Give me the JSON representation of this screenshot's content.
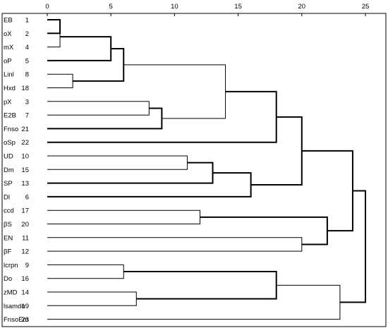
{
  "chart_data": {
    "type": "dendrogram",
    "title": "",
    "xlabel": "",
    "ylabel": "",
    "xlim": [
      0,
      25
    ],
    "x_ticks": [
      0,
      5,
      10,
      15,
      20,
      25
    ],
    "grid": false,
    "leaves": [
      {
        "label": "EB",
        "case": 1
      },
      {
        "label": "oX",
        "case": 2
      },
      {
        "label": "mX",
        "case": 4
      },
      {
        "label": "oP",
        "case": 5
      },
      {
        "label": "Linl",
        "case": 8
      },
      {
        "label": "Hxd",
        "case": 18
      },
      {
        "label": "pX",
        "case": 3
      },
      {
        "label": "E2B",
        "case": 7
      },
      {
        "label": "Fnso",
        "case": 21
      },
      {
        "label": "oSp",
        "case": 22
      },
      {
        "label": "UD",
        "case": 10
      },
      {
        "label": "Dm",
        "case": 15
      },
      {
        "label": "SP",
        "case": 13
      },
      {
        "label": "Dl",
        "case": 6
      },
      {
        "label": "ccd",
        "case": 17
      },
      {
        "label": "βS",
        "case": 20
      },
      {
        "label": "EN",
        "case": 11
      },
      {
        "label": "βF",
        "case": 12
      },
      {
        "label": "lcrpn",
        "case": 9
      },
      {
        "label": "Do",
        "case": 16
      },
      {
        "label": "zMD",
        "case": 14
      },
      {
        "label": "lsamdn",
        "case": 19
      },
      {
        "label": "FnsoEm",
        "case": 23
      }
    ],
    "merges": [
      {
        "a": "L0",
        "b": "L1",
        "height": 1.0,
        "bold": true
      },
      {
        "a": "M0",
        "b": "L2",
        "height": 1.0,
        "bold": false
      },
      {
        "a": "M1",
        "b": "L3",
        "height": 5.0,
        "bold": true
      },
      {
        "a": "L4",
        "b": "L5",
        "height": 2.0,
        "bold": false
      },
      {
        "a": "M2",
        "b": "M3",
        "height": 6.0,
        "bold": true
      },
      {
        "a": "L6",
        "b": "L7",
        "height": 8.0,
        "bold": false
      },
      {
        "a": "M5",
        "b": "L8",
        "height": 9.0,
        "bold": true
      },
      {
        "a": "M4",
        "b": "M6",
        "height": 14.0,
        "bold": false
      },
      {
        "a": "M7",
        "b": "L9",
        "height": 18.0,
        "bold": true
      },
      {
        "a": "L10",
        "b": "L11",
        "height": 11.0,
        "bold": false
      },
      {
        "a": "M9",
        "b": "L12",
        "height": 13.0,
        "bold": true
      },
      {
        "a": "M10",
        "b": "L13",
        "height": 16.0,
        "bold": true
      },
      {
        "a": "M8",
        "b": "M11",
        "height": 20.0,
        "bold": true
      },
      {
        "a": "L14",
        "b": "L15",
        "height": 12.0,
        "bold": false
      },
      {
        "a": "L16",
        "b": "L17",
        "height": 20.0,
        "bold": false
      },
      {
        "a": "M13",
        "b": "M14",
        "height": 22.0,
        "bold": true
      },
      {
        "a": "M12",
        "b": "M15",
        "height": 24.0,
        "bold": true
      },
      {
        "a": "L18",
        "b": "L19",
        "height": 6.0,
        "bold": false
      },
      {
        "a": "L20",
        "b": "L21",
        "height": 7.0,
        "bold": false
      },
      {
        "a": "M17",
        "b": "M18",
        "height": 18.0,
        "bold": true
      },
      {
        "a": "M19",
        "b": "L22",
        "height": 23.0,
        "bold": false
      },
      {
        "a": "M16",
        "b": "M20",
        "height": 25.0,
        "bold": true
      }
    ]
  }
}
